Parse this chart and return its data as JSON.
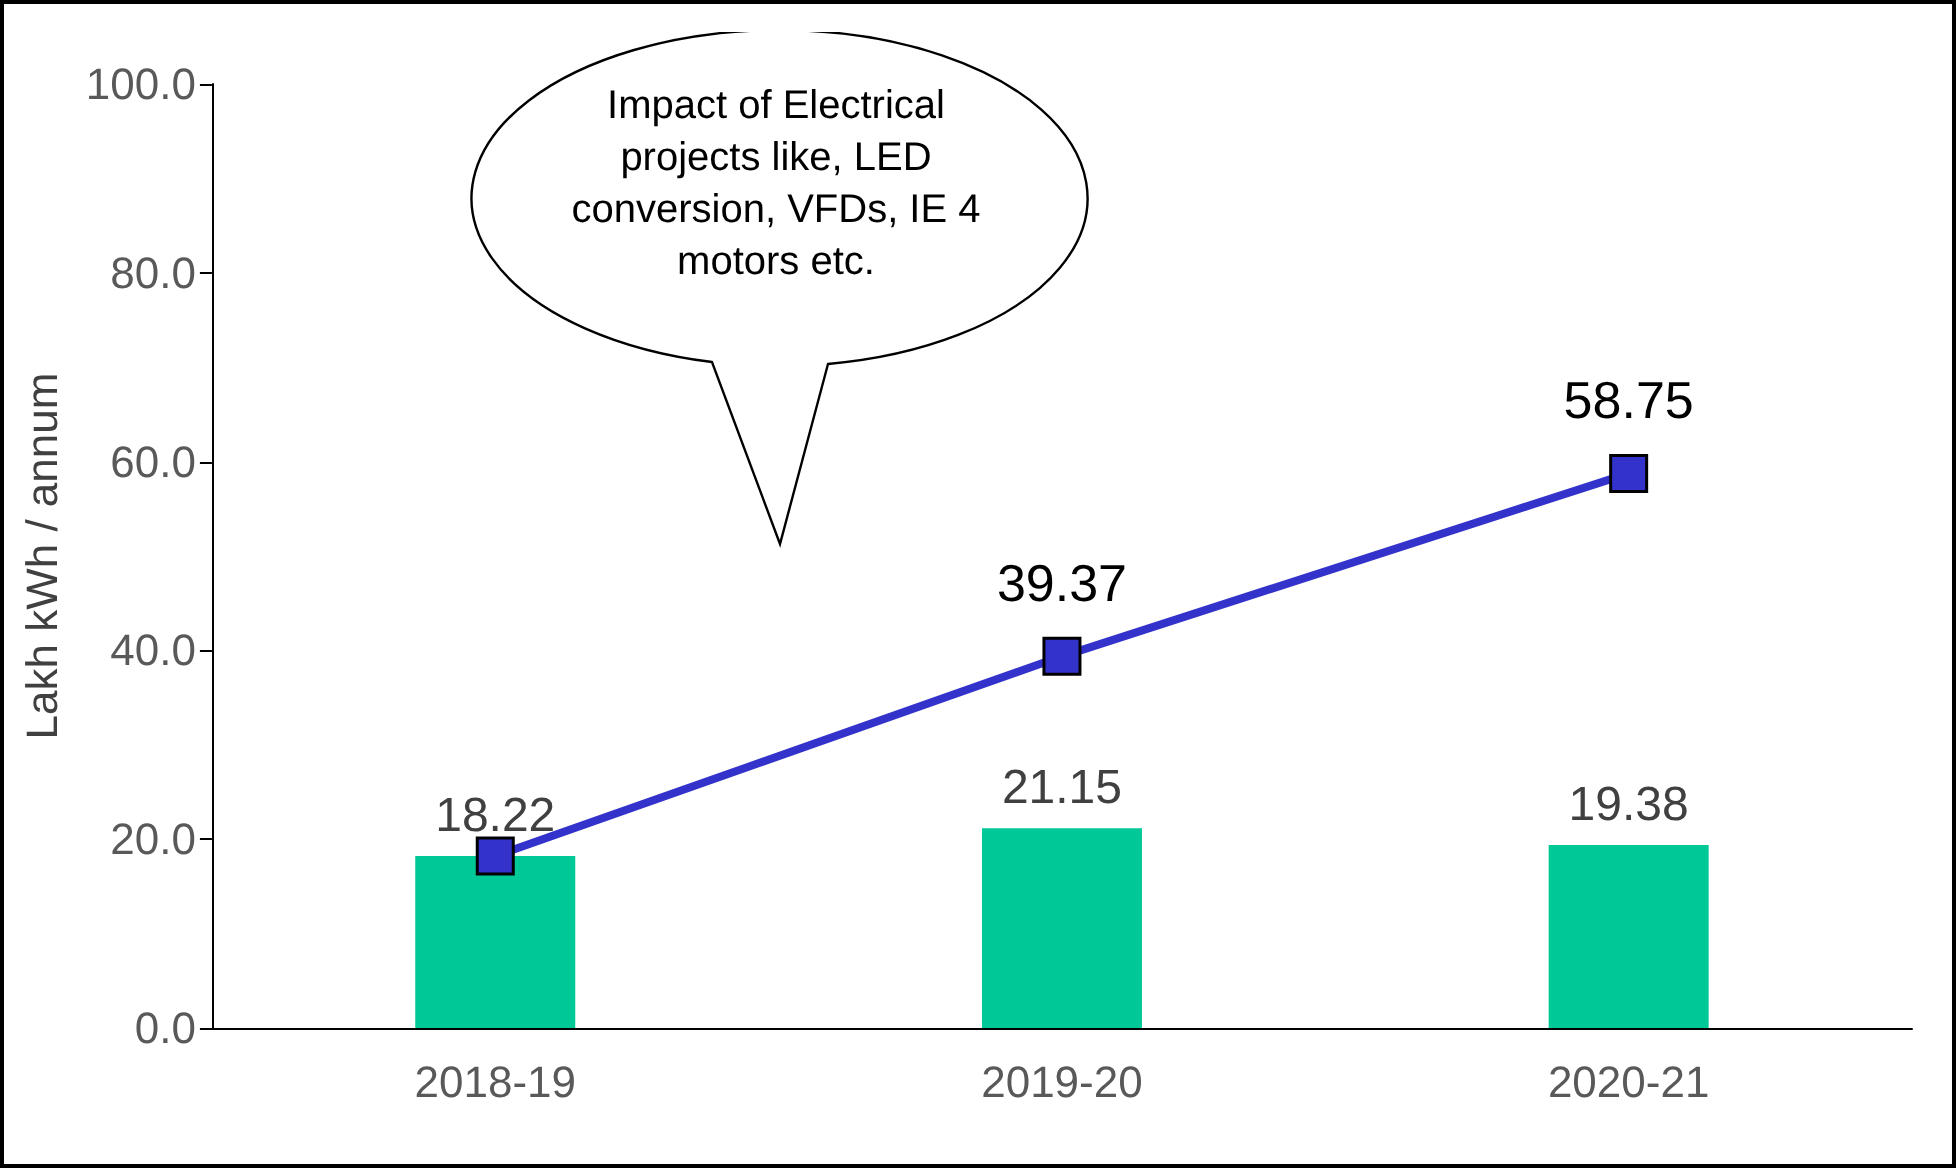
{
  "chart_data": {
    "type": "bar",
    "ylabel": "Lakh kWh / annum",
    "categories": [
      "2018-19",
      "2019-20",
      "2020-21"
    ],
    "series": [
      {
        "color": "#00c896",
        "values": [
          18.22,
          21.15,
          19.38
        ],
        "value_labels": [
          "18.22",
          "21.15",
          "19.38"
        ]
      },
      {
        "type": "line",
        "color": "#3333cc",
        "values": [
          18.22,
          39.37,
          58.75
        ],
        "value_labels": [
          null,
          "39.37",
          "58.75"
        ]
      }
    ],
    "ylim": [
      0,
      100
    ],
    "yticks": [
      {
        "value": 0,
        "label": "0.0"
      },
      {
        "value": 20,
        "label": "20.0"
      },
      {
        "value": 40,
        "label": "40.0"
      },
      {
        "value": 60,
        "label": "60.0"
      },
      {
        "value": 80,
        "label": "80.0"
      },
      {
        "value": 100,
        "label": "100.0"
      }
    ],
    "annotations": [
      "Impact of Electrical projects like, LED conversion, VFDs, IE 4 motors etc."
    ],
    "marker": "square",
    "grid": false
  }
}
